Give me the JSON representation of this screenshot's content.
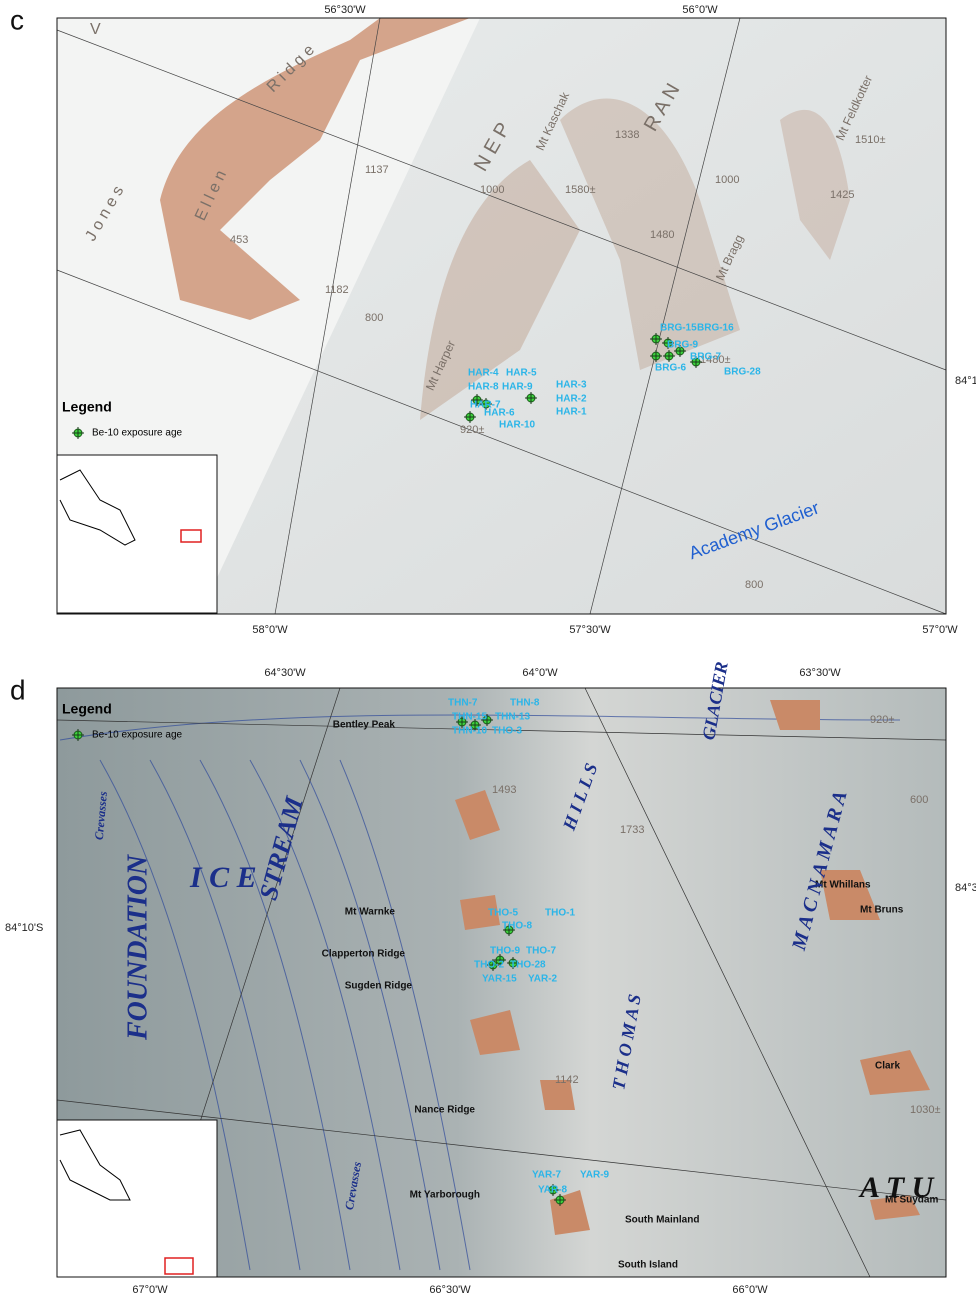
{
  "panels": [
    {
      "label": "c",
      "top_axis": [
        "56°30'W",
        "56°0'W"
      ],
      "bottom_axis": [
        "58°0'W",
        "57°30'W",
        "57°0'W"
      ],
      "side_axis": [
        "84°1"
      ],
      "legend": {
        "title": "Legend",
        "item": "Be-10 exposure age"
      },
      "places": [
        "J o n e s",
        "V",
        "E l l e n",
        "R i d g e",
        "N E P",
        "R A N",
        "Mt Kaschak",
        "Mt Feldkotter",
        "Mt Bragg",
        "Mt Harper",
        "Academy Glacier"
      ],
      "elevations": [
        "1338",
        "1580±",
        "1480",
        "1480±",
        "1425",
        "1510±",
        "1000",
        "800",
        "920±",
        "1182",
        "1137",
        "453",
        "800",
        "1000"
      ],
      "samples": [
        "BRG-15",
        "BRG-16",
        "BRG-9",
        "BRG-7",
        "BRG-6",
        "BRG-28",
        "HAR-4",
        "HAR-5",
        "HAR-8",
        "HAR-9",
        "HAR-3",
        "HAR-7",
        "HAR-2",
        "HAR-1",
        "HAR-6",
        "HAR-10"
      ]
    },
    {
      "label": "d",
      "top_axis": [
        "64°30'W",
        "64°0'W",
        "63°30'W"
      ],
      "bottom_axis": [
        "67°0'W",
        "66°30'W",
        "66°0'W"
      ],
      "side_axis": [
        "84°10'S",
        "84°3"
      ],
      "legend": {
        "title": "Legend",
        "item": "Be-10 exposure age"
      },
      "places": [
        "Bentley Peak",
        "Mt Warnke",
        "Clapperton Ridge",
        "Sugden Ridge",
        "Nance Ridge",
        "Mt Yarborough",
        "South Mainland",
        "South Island",
        "Mt Whillans",
        "Mt Bruns",
        "Clark",
        "Mt Suydam"
      ],
      "big_names": [
        "FOUNDATION",
        "I C E",
        "STREAM",
        "Crevasses",
        "Crevasses",
        "H I L L S",
        "T H O M A S",
        "M A C N A M A R A",
        "GLACIER",
        "A T U"
      ],
      "elevations": [
        "1493",
        "1733",
        "600",
        "920±",
        "1030±",
        "1142"
      ],
      "samples": [
        "THN-7",
        "THN-8",
        "THN-15",
        "THN-13",
        "THN-10",
        "THO-3",
        "THO-5",
        "THO-1",
        "THO-8",
        "THO-9",
        "THO-7",
        "THO-2",
        "THO-28",
        "YAR-15",
        "YAR-2",
        "YAR-7",
        "YAR-9",
        "YAR-8"
      ]
    }
  ]
}
